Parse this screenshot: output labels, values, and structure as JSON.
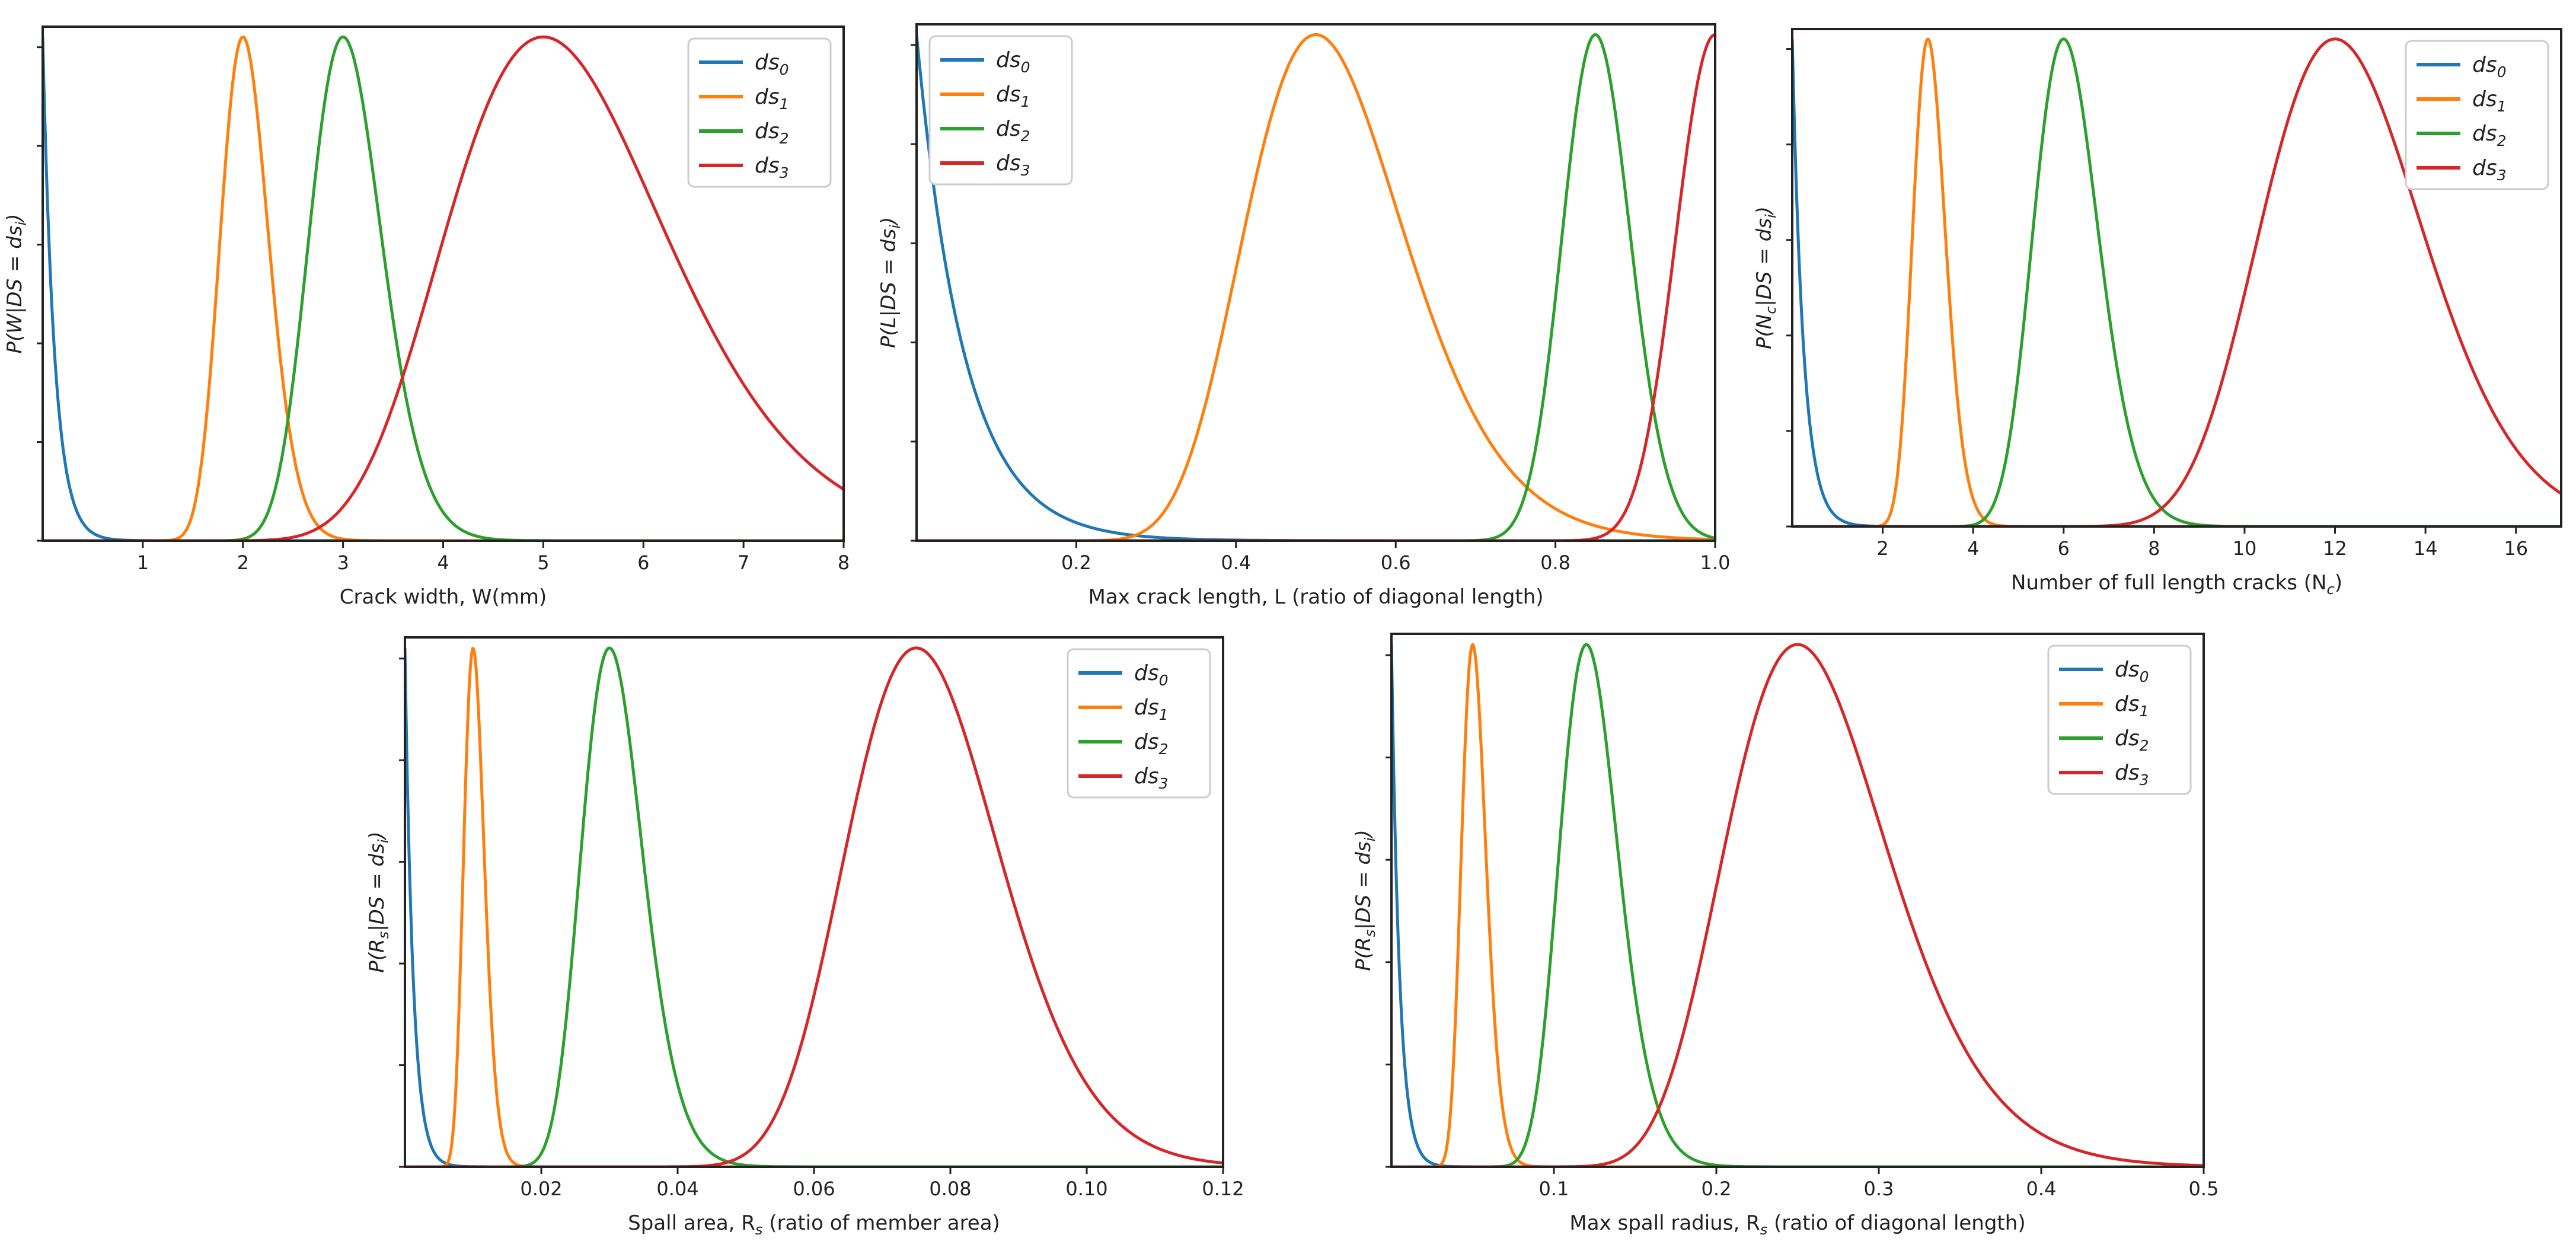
{
  "chart_data": [
    {
      "id": "p1",
      "type": "line",
      "xlim": [
        0,
        8
      ],
      "xticks": [
        1,
        2,
        3,
        4,
        5,
        6,
        7,
        8
      ],
      "tick_labels": [
        "1",
        "2",
        "3",
        "4",
        "5",
        "6",
        "7",
        "8"
      ],
      "xlabel": "Crack width, W(mm)",
      "ylabel_var": "W",
      "legend_position": "top-right",
      "series": [
        {
          "name": "ds",
          "sub": "0",
          "color": "#1f77b4",
          "dist": "decay",
          "scale": 0.12,
          "peak_at": 0
        },
        {
          "name": "ds",
          "sub": "1",
          "color": "#ff7f0e",
          "dist": "lognormal",
          "mode": 2,
          "sigma": 0.12,
          "peak_at": 2
        },
        {
          "name": "ds",
          "sub": "2",
          "color": "#2ca02c",
          "dist": "lognormal",
          "mode": 3,
          "sigma": 0.12,
          "peak_at": 3
        },
        {
          "name": "ds",
          "sub": "3",
          "color": "#d62728",
          "dist": "lognormal",
          "mode": 5,
          "sigma": 0.22,
          "peak_at": 5
        }
      ]
    },
    {
      "id": "p2",
      "type": "line",
      "xlim": [
        0,
        1
      ],
      "xticks": [
        0.2,
        0.4,
        0.6,
        0.8,
        1.0
      ],
      "tick_labels": [
        "0.2",
        "0.4",
        "0.6",
        "0.8",
        "1.0"
      ],
      "xlabel": "Max crack length, L (ratio of diagonal length)",
      "ylabel_var": "L",
      "legend_position": "top-left",
      "series": [
        {
          "name": "ds",
          "sub": "0",
          "color": "#1f77b4",
          "dist": "decay",
          "scale": 0.06,
          "peak_at": 0
        },
        {
          "name": "ds",
          "sub": "1",
          "color": "#ff7f0e",
          "dist": "lognormal",
          "mode": 0.5,
          "sigma": 0.2,
          "peak_at": 0.5
        },
        {
          "name": "ds",
          "sub": "2",
          "color": "#2ca02c",
          "dist": "lognormal",
          "mode": 0.85,
          "sigma": 0.05,
          "peak_at": 0.85
        },
        {
          "name": "ds",
          "sub": "3",
          "color": "#d62728",
          "dist": "lognormal",
          "mode": 1.0,
          "sigma": 0.05,
          "peak_at": 1.0
        }
      ]
    },
    {
      "id": "p3",
      "type": "line",
      "xlim": [
        0,
        17
      ],
      "xticks": [
        2,
        4,
        6,
        8,
        10,
        12,
        14,
        16
      ],
      "tick_labels": [
        "2",
        "4",
        "6",
        "8",
        "10",
        "12",
        "14",
        "16"
      ],
      "xlabel": "Number of full length cracks (N",
      "xlabel_sub": "c",
      "xlabel_end": ")",
      "ylabel_var": "N",
      "ylabel_sub": "c",
      "legend_position": "top-right",
      "series": [
        {
          "name": "ds",
          "sub": "0",
          "color": "#1f77b4",
          "dist": "decay",
          "scale": 0.25,
          "peak_at": 0
        },
        {
          "name": "ds",
          "sub": "1",
          "color": "#ff7f0e",
          "dist": "lognormal",
          "mode": 3,
          "sigma": 0.12,
          "peak_at": 3
        },
        {
          "name": "ds",
          "sub": "2",
          "color": "#2ca02c",
          "dist": "lognormal",
          "mode": 6,
          "sigma": 0.12,
          "peak_at": 6
        },
        {
          "name": "ds",
          "sub": "3",
          "color": "#d62728",
          "dist": "lognormal",
          "mode": 12,
          "sigma": 0.15,
          "peak_at": 12
        }
      ]
    },
    {
      "id": "p4",
      "type": "line",
      "xlim": [
        0,
        0.12
      ],
      "xticks": [
        0.02,
        0.04,
        0.06,
        0.08,
        0.1,
        0.12
      ],
      "tick_labels": [
        "0.02",
        "0.04",
        "0.06",
        "0.08",
        "0.10",
        "0.12"
      ],
      "xlabel": "Spall area, R",
      "xlabel_sub": "s",
      "xlabel_end": " (ratio of member area)",
      "ylabel_var": "R",
      "ylabel_sub": "s",
      "legend_position": "top-right",
      "series": [
        {
          "name": "ds",
          "sub": "0",
          "color": "#1f77b4",
          "dist": "decay",
          "scale": 0.0012,
          "peak_at": 0
        },
        {
          "name": "ds",
          "sub": "1",
          "color": "#ff7f0e",
          "dist": "lognormal",
          "mode": 0.01,
          "sigma": 0.15,
          "peak_at": 0.01
        },
        {
          "name": "ds",
          "sub": "2",
          "color": "#2ca02c",
          "dist": "lognormal",
          "mode": 0.03,
          "sigma": 0.15,
          "peak_at": 0.03
        },
        {
          "name": "ds",
          "sub": "3",
          "color": "#d62728",
          "dist": "lognormal",
          "mode": 0.075,
          "sigma": 0.15,
          "peak_at": 0.075
        }
      ]
    },
    {
      "id": "p5",
      "type": "line",
      "xlim": [
        0,
        0.5
      ],
      "xticks": [
        0.1,
        0.2,
        0.3,
        0.4,
        0.5
      ],
      "tick_labels": [
        "0.1",
        "0.2",
        "0.3",
        "0.4",
        "0.5"
      ],
      "xlabel": "Max spall radius, R",
      "xlabel_sub": "s",
      "xlabel_end": " (ratio of diagonal length)",
      "ylabel_var": "R",
      "ylabel_sub": "s",
      "legend_position": "top-right",
      "series": [
        {
          "name": "ds",
          "sub": "0",
          "color": "#1f77b4",
          "dist": "decay",
          "scale": 0.005,
          "peak_at": 0
        },
        {
          "name": "ds",
          "sub": "1",
          "color": "#ff7f0e",
          "dist": "lognormal",
          "mode": 0.05,
          "sigma": 0.15,
          "peak_at": 0.05
        },
        {
          "name": "ds",
          "sub": "2",
          "color": "#2ca02c",
          "dist": "lognormal",
          "mode": 0.12,
          "sigma": 0.15,
          "peak_at": 0.12
        },
        {
          "name": "ds",
          "sub": "3",
          "color": "#d62728",
          "dist": "lognormal",
          "mode": 0.25,
          "sigma": 0.2,
          "peak_at": 0.25
        }
      ]
    }
  ]
}
